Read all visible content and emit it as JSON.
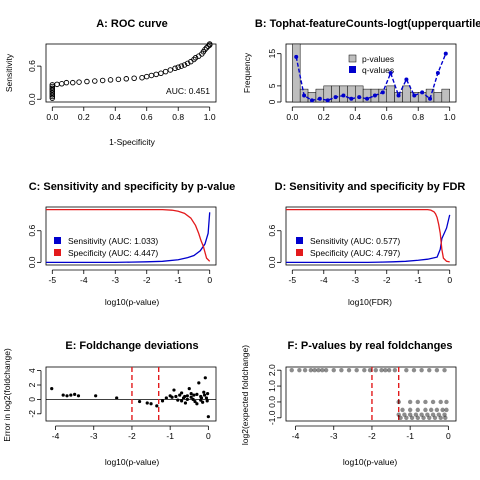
{
  "chart_data": [
    {
      "id": "A",
      "type": "scatter",
      "title": "A: ROC curve",
      "xlabel": "1-Specificity",
      "ylabel": "Sensitivity",
      "xlim": [
        -0.04,
        1.04
      ],
      "ylim": [
        -0.05,
        1.0
      ],
      "xticks": [
        0.0,
        0.2,
        0.4,
        0.6,
        0.8,
        1.0
      ],
      "xtick_labels": [
        "0.0",
        "0.2",
        "0.4",
        "0.6",
        "0.8",
        "1.0"
      ],
      "yticks": [
        0.0,
        0.6
      ],
      "ytick_labels": [
        "0.0",
        "0.6"
      ],
      "annotation": "AUC: 0.451",
      "points": [
        [
          0.0,
          0.02
        ],
        [
          0.0,
          0.05
        ],
        [
          0.0,
          0.08
        ],
        [
          0.0,
          0.11
        ],
        [
          0.0,
          0.14
        ],
        [
          0.0,
          0.17
        ],
        [
          0.0,
          0.2
        ],
        [
          0.0,
          0.23
        ],
        [
          0.0,
          0.26
        ],
        [
          0.03,
          0.27
        ],
        [
          0.06,
          0.28
        ],
        [
          0.09,
          0.3
        ],
        [
          0.13,
          0.3
        ],
        [
          0.17,
          0.31
        ],
        [
          0.22,
          0.32
        ],
        [
          0.27,
          0.33
        ],
        [
          0.32,
          0.34
        ],
        [
          0.37,
          0.35
        ],
        [
          0.42,
          0.36
        ],
        [
          0.47,
          0.37
        ],
        [
          0.52,
          0.38
        ],
        [
          0.57,
          0.39
        ],
        [
          0.6,
          0.41
        ],
        [
          0.63,
          0.43
        ],
        [
          0.66,
          0.45
        ],
        [
          0.69,
          0.47
        ],
        [
          0.72,
          0.5
        ],
        [
          0.75,
          0.53
        ],
        [
          0.78,
          0.56
        ],
        [
          0.8,
          0.58
        ],
        [
          0.82,
          0.6
        ],
        [
          0.84,
          0.62
        ],
        [
          0.86,
          0.65
        ],
        [
          0.88,
          0.68
        ],
        [
          0.9,
          0.72
        ],
        [
          0.91,
          0.75
        ],
        [
          0.93,
          0.78
        ],
        [
          0.95,
          0.82
        ],
        [
          0.96,
          0.86
        ],
        [
          0.97,
          0.9
        ],
        [
          0.98,
          0.93
        ],
        [
          0.99,
          0.96
        ],
        [
          1.0,
          0.98
        ],
        [
          1.0,
          1.0
        ]
      ]
    },
    {
      "id": "B",
      "type": "bar",
      "title": "B: Tophat-featureCounts-logt(upperquartile)",
      "xlabel": "",
      "ylabel": "Frequency",
      "xlim": [
        -0.04,
        1.04
      ],
      "ylim": [
        0,
        18
      ],
      "xticks": [
        0.0,
        0.2,
        0.4,
        0.6,
        0.8,
        1.0
      ],
      "xtick_labels": [
        "0.0",
        "0.2",
        "0.4",
        "0.6",
        "0.8",
        "1.0"
      ],
      "yticks": [
        0,
        5,
        15
      ],
      "ytick_labels": [
        "0",
        "5",
        "15"
      ],
      "bin_width": 0.05,
      "bins": [
        0,
        0.05,
        0.1,
        0.15,
        0.2,
        0.25,
        0.3,
        0.35,
        0.4,
        0.45,
        0.5,
        0.55,
        0.6,
        0.65,
        0.7,
        0.75,
        0.8,
        0.85,
        0.9,
        0.95
      ],
      "values": [
        18,
        4,
        3,
        4,
        5,
        5,
        5,
        5,
        5,
        4,
        4,
        4,
        5,
        3,
        5,
        3,
        3,
        4,
        3,
        4
      ],
      "series": [
        {
          "name": "p-values",
          "color": "#bebebe"
        },
        {
          "name": "q-values",
          "color": "#0000cd"
        }
      ],
      "qline_x": [
        0.025,
        0.075,
        0.125,
        0.175,
        0.225,
        0.275,
        0.325,
        0.375,
        0.425,
        0.475,
        0.525,
        0.575,
        0.625,
        0.675,
        0.725,
        0.775,
        0.825,
        0.875,
        0.925,
        0.975
      ],
      "qline_y": [
        14,
        2,
        0.5,
        1,
        0.5,
        1.5,
        2,
        1,
        1.5,
        1,
        2,
        3,
        9,
        2,
        7,
        2,
        3,
        1,
        9,
        15
      ]
    },
    {
      "id": "C",
      "type": "line",
      "title": "C: Sensitivity and specificity by p-value",
      "xlabel": "log10(p-value)",
      "ylabel": "",
      "xlim": [
        -5.2,
        0.2
      ],
      "ylim": [
        -0.05,
        1.05
      ],
      "xticks": [
        -5,
        -4,
        -3,
        -2,
        -1,
        0
      ],
      "xtick_labels": [
        "-5",
        "-4",
        "-3",
        "-2",
        "-1",
        "0"
      ],
      "yticks": [
        0.0,
        0.6
      ],
      "ytick_labels": [
        "0.0",
        "0.6"
      ],
      "series": [
        {
          "name": "Sensitivity (AUC: 1.033)",
          "color": "#0000cd",
          "x": [
            -5.2,
            -3.0,
            -2.5,
            -2.0,
            -1.5,
            -1.0,
            -0.7,
            -0.5,
            -0.3,
            -0.15,
            -0.05,
            0.0
          ],
          "y": [
            0,
            0,
            0.005,
            0.01,
            0.02,
            0.05,
            0.09,
            0.13,
            0.22,
            0.35,
            0.55,
            0.95
          ]
        },
        {
          "name": "Specificity (AUC: 4.447)",
          "color": "#e31a1c",
          "x": [
            -5.2,
            -1.5,
            -1.2,
            -1.0,
            -0.8,
            -0.6,
            -0.45,
            -0.35,
            -0.28,
            -0.2,
            -0.1,
            0.0
          ],
          "y": [
            1,
            1,
            0.99,
            0.97,
            0.93,
            0.84,
            0.7,
            0.55,
            0.42,
            0.3,
            0.08,
            0.02
          ]
        }
      ]
    },
    {
      "id": "D",
      "type": "line",
      "title": "D: Sensitivity and specificity by FDR",
      "xlabel": "log10(FDR)",
      "ylabel": "",
      "xlim": [
        -5.2,
        0.2
      ],
      "ylim": [
        -0.05,
        1.05
      ],
      "xticks": [
        -5,
        -4,
        -3,
        -2,
        -1,
        0
      ],
      "xtick_labels": [
        "-5",
        "-4",
        "-3",
        "-2",
        "-1",
        "0"
      ],
      "yticks": [
        0.0,
        0.6
      ],
      "ytick_labels": [
        "0.0",
        "0.6"
      ],
      "series": [
        {
          "name": "Sensitivity (AUC: 0.577)",
          "color": "#0000cd",
          "x": [
            -5.2,
            -2.6,
            -2.2,
            -1.8,
            -1.4,
            -1.0,
            -0.7,
            -0.4,
            -0.3,
            -0.25,
            -0.1,
            0.0
          ],
          "y": [
            0,
            0,
            0.005,
            0.01,
            0.02,
            0.04,
            0.06,
            0.1,
            0.25,
            0.45,
            0.65,
            0.9
          ]
        },
        {
          "name": "Specificity (AUC: 4.797)",
          "color": "#e31a1c",
          "x": [
            -5.2,
            -0.7,
            -0.6,
            -0.5,
            -0.45,
            -0.4,
            -0.35,
            -0.3,
            -0.25,
            -0.2,
            -0.1,
            0.0
          ],
          "y": [
            1,
            1,
            0.99,
            0.96,
            0.92,
            0.85,
            0.72,
            0.55,
            0.25,
            0.08,
            0.02,
            0.01
          ]
        }
      ]
    },
    {
      "id": "E",
      "type": "scatter",
      "title": "E: Foldchange deviations",
      "xlabel": "log10(p-value)",
      "ylabel": "Error in log2(foldchange)",
      "xlim": [
        -4.25,
        0.2
      ],
      "ylim": [
        -3.0,
        4.5
      ],
      "xticks": [
        -4,
        -3,
        -2,
        -1,
        0
      ],
      "xtick_labels": [
        "-4",
        "-3",
        "-2",
        "-1",
        "0"
      ],
      "yticks": [
        -2,
        0,
        2,
        4
      ],
      "ytick_labels": [
        "-2",
        "0",
        "2",
        "4"
      ],
      "vlines": [
        -2.0,
        -1.3
      ],
      "hline": 0,
      "points": [
        [
          -4.1,
          1.5
        ],
        [
          -3.8,
          0.6
        ],
        [
          -3.7,
          0.5
        ],
        [
          -3.6,
          0.6
        ],
        [
          -3.5,
          0.7
        ],
        [
          -3.4,
          0.5
        ],
        [
          -2.95,
          0.5
        ],
        [
          -2.4,
          0.2
        ],
        [
          -1.8,
          -0.3
        ],
        [
          -1.6,
          -0.5
        ],
        [
          -1.5,
          -0.6
        ],
        [
          -1.35,
          -0.9
        ],
        [
          -1.2,
          -0.2
        ],
        [
          -1.1,
          0.2
        ],
        [
          -1.0,
          0.5
        ],
        [
          -0.95,
          0.3
        ],
        [
          -0.9,
          1.3
        ],
        [
          -0.85,
          0.4
        ],
        [
          -0.8,
          -0.1
        ],
        [
          -0.75,
          0.6
        ],
        [
          -0.7,
          0.9
        ],
        [
          -0.65,
          0.2
        ],
        [
          -0.6,
          -0.5
        ],
        [
          -0.55,
          0.5
        ],
        [
          -0.5,
          1.5
        ],
        [
          -0.45,
          0.3
        ],
        [
          -0.4,
          0.0
        ],
        [
          -0.35,
          -0.3
        ],
        [
          -0.3,
          0.7
        ],
        [
          -0.25,
          2.3
        ],
        [
          -0.2,
          0.4
        ],
        [
          -0.15,
          -0.4
        ],
        [
          -0.1,
          0.6
        ],
        [
          -0.08,
          3.0
        ],
        [
          -0.05,
          0.2
        ],
        [
          -0.03,
          -0.2
        ],
        [
          0.0,
          -2.4
        ],
        [
          -0.7,
          -0.2
        ],
        [
          -0.55,
          0.0
        ],
        [
          -0.45,
          0.8
        ],
        [
          -0.3,
          -0.6
        ],
        [
          -0.2,
          -0.1
        ],
        [
          -0.12,
          1.0
        ],
        [
          -0.62,
          0.4
        ],
        [
          -0.38,
          0.6
        ],
        [
          -0.18,
          0.2
        ],
        [
          -0.02,
          0.8
        ]
      ]
    },
    {
      "id": "F",
      "type": "scatter",
      "title": "F: P-values by real foldchanges",
      "xlabel": "log10(p-value)",
      "ylabel": "log2(expected foldchange)",
      "xlim": [
        -4.25,
        0.2
      ],
      "ylim": [
        -1.2,
        2.2
      ],
      "xticks": [
        -4,
        -3,
        -2,
        -1,
        0
      ],
      "xtick_labels": [
        "-4",
        "-3",
        "-2",
        "-1",
        "0"
      ],
      "yticks": [
        -1.0,
        0.0,
        1.0,
        2.0
      ],
      "ytick_labels": [
        "-1.0",
        "0.0",
        "1.0",
        "2.0"
      ],
      "vlines": [
        -2.0,
        -1.3
      ],
      "points": [
        [
          -4.1,
          2
        ],
        [
          -3.9,
          2
        ],
        [
          -3.75,
          2
        ],
        [
          -3.6,
          2
        ],
        [
          -3.5,
          2
        ],
        [
          -3.4,
          2
        ],
        [
          -3.3,
          2
        ],
        [
          -3.2,
          2
        ],
        [
          -3.0,
          2
        ],
        [
          -2.8,
          2
        ],
        [
          -2.6,
          2
        ],
        [
          -2.4,
          2
        ],
        [
          -2.2,
          2
        ],
        [
          -2.05,
          2
        ],
        [
          -1.9,
          2
        ],
        [
          -1.75,
          2
        ],
        [
          -1.65,
          2
        ],
        [
          -1.55,
          2
        ],
        [
          -1.4,
          2
        ],
        [
          -1.1,
          2
        ],
        [
          -0.9,
          2
        ],
        [
          -0.7,
          2
        ],
        [
          -0.5,
          2
        ],
        [
          -0.3,
          2
        ],
        [
          -0.1,
          2
        ],
        [
          -1.2,
          -0.5
        ],
        [
          -1.0,
          -0.5
        ],
        [
          -0.8,
          -0.5
        ],
        [
          -0.6,
          -0.5
        ],
        [
          -0.45,
          -0.5
        ],
        [
          -0.3,
          -0.5
        ],
        [
          -0.15,
          -0.5
        ],
        [
          -0.05,
          -0.5
        ],
        [
          -1.25,
          -1
        ],
        [
          -1.1,
          -1
        ],
        [
          -0.95,
          -1
        ],
        [
          -0.8,
          -1
        ],
        [
          -0.65,
          -1
        ],
        [
          -0.5,
          -1
        ],
        [
          -0.35,
          -1
        ],
        [
          -0.2,
          -1
        ],
        [
          -0.08,
          -1
        ],
        [
          -1.3,
          -0.8
        ],
        [
          -1.15,
          -0.8
        ],
        [
          -1.0,
          -0.8
        ],
        [
          -0.85,
          -0.8
        ],
        [
          -0.7,
          -0.8
        ],
        [
          -0.55,
          -0.8
        ],
        [
          -0.4,
          -0.8
        ],
        [
          -0.25,
          -0.8
        ],
        [
          -0.1,
          -0.8
        ],
        [
          -1.3,
          0
        ],
        [
          -1.0,
          0
        ],
        [
          -0.8,
          0
        ],
        [
          -0.6,
          0
        ],
        [
          -0.4,
          0
        ],
        [
          -0.2,
          0
        ],
        [
          -0.05,
          0
        ]
      ]
    }
  ]
}
